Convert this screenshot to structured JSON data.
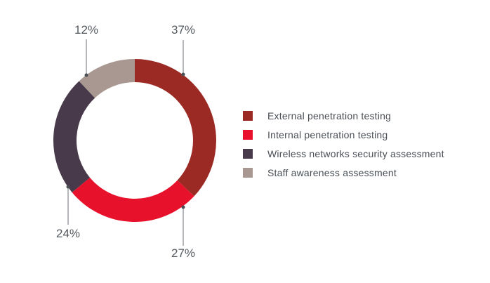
{
  "chart_data": {
    "type": "pie",
    "donut": true,
    "title": "",
    "categories": [
      "External penetration testing",
      "Internal penetration testing",
      "Wireless networks security assessment",
      "Staff awareness assessment"
    ],
    "values": [
      37,
      27,
      24,
      12
    ],
    "value_labels": [
      "37%",
      "27%",
      "24%",
      "12%"
    ],
    "colors": [
      "#9b2a24",
      "#e8112c",
      "#483a4a",
      "#a99891"
    ],
    "legend_placement": "right"
  }
}
